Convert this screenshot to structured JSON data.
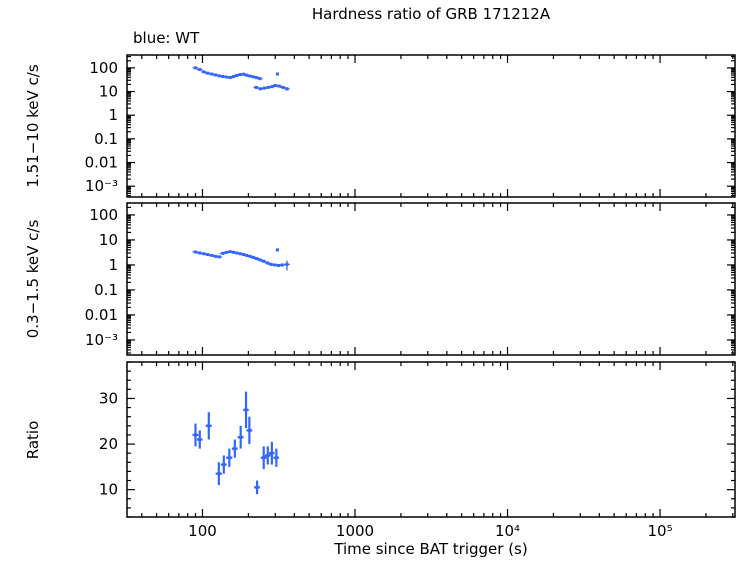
{
  "chart_data": {
    "type": "scatter",
    "title": "Hardness ratio of GRB 171212A",
    "legend": "blue: WT",
    "xlabel": "Time since BAT trigger (s)",
    "x_scale": "log",
    "x_range": [
      32,
      310000
    ],
    "x_ticks": [
      {
        "v": 100,
        "label": "100"
      },
      {
        "v": 1000,
        "label": "1000"
      },
      {
        "v": 10000,
        "label": "10⁴"
      },
      {
        "v": 100000,
        "label": "10⁵"
      }
    ],
    "series_color": "#3366ff",
    "axis_color": "#000000",
    "panels": [
      {
        "name": "hard-band",
        "ylabel": "1.51−10 keV c/s",
        "y_scale": "log",
        "y_range": [
          0.00035,
          350
        ],
        "y_ticks": [
          {
            "v": 100,
            "label": "100"
          },
          {
            "v": 10,
            "label": "10"
          },
          {
            "v": 1,
            "label": "1"
          },
          {
            "v": 0.1,
            "label": "0.1"
          },
          {
            "v": 0.01,
            "label": "0.01"
          },
          {
            "v": 0.001,
            "label": "10⁻³"
          }
        ],
        "points": [
          [
            90,
            100,
            8,
            4
          ],
          [
            96,
            85,
            7,
            4
          ],
          [
            102,
            68,
            6,
            4
          ],
          [
            108,
            60,
            5,
            4
          ],
          [
            115,
            55,
            5,
            5
          ],
          [
            122,
            50,
            4,
            5
          ],
          [
            129,
            46,
            4,
            5
          ],
          [
            136,
            43,
            4,
            6
          ],
          [
            144,
            41,
            3,
            6
          ],
          [
            152,
            39,
            3,
            6
          ],
          [
            160,
            43,
            3,
            7
          ],
          [
            168,
            48,
            4,
            7
          ],
          [
            177,
            52,
            4,
            7
          ],
          [
            186,
            54,
            4,
            8
          ],
          [
            195,
            49,
            4,
            8
          ],
          [
            205,
            45,
            4,
            9
          ],
          [
            215,
            42,
            3,
            9
          ],
          [
            226,
            39,
            3,
            9
          ],
          [
            238,
            35,
            3,
            10
          ],
          [
            225,
            15,
            2,
            9
          ],
          [
            240,
            13,
            1.5,
            10
          ],
          [
            255,
            14,
            1.5,
            11
          ],
          [
            270,
            15,
            1.5,
            11
          ],
          [
            285,
            16,
            1.5,
            12
          ],
          [
            300,
            18,
            2,
            12
          ],
          [
            318,
            17,
            2,
            13
          ],
          [
            337,
            15,
            2,
            14
          ],
          [
            358,
            13,
            2,
            15
          ],
          [
            310,
            55,
            6,
            6
          ]
        ]
      },
      {
        "name": "soft-band",
        "ylabel": "0.3−1.5 keV c/s",
        "y_scale": "log",
        "y_range": [
          0.00025,
          300
        ],
        "y_ticks": [
          {
            "v": 100,
            "label": "100"
          },
          {
            "v": 10,
            "label": "10"
          },
          {
            "v": 1,
            "label": "1"
          },
          {
            "v": 0.1,
            "label": "0.1"
          },
          {
            "v": 0.01,
            "label": "0.01"
          },
          {
            "v": 0.001,
            "label": "10⁻³"
          }
        ],
        "points": [
          [
            90,
            3.3,
            0.3,
            4
          ],
          [
            96,
            3.0,
            0.3,
            4
          ],
          [
            102,
            2.8,
            0.25,
            4
          ],
          [
            108,
            2.6,
            0.25,
            4
          ],
          [
            115,
            2.4,
            0.2,
            5
          ],
          [
            122,
            2.2,
            0.2,
            5
          ],
          [
            129,
            2.1,
            0.2,
            5
          ],
          [
            136,
            2.9,
            0.25,
            6
          ],
          [
            144,
            3.2,
            0.25,
            6
          ],
          [
            152,
            3.4,
            0.3,
            6
          ],
          [
            160,
            3.2,
            0.25,
            7
          ],
          [
            168,
            3.0,
            0.25,
            7
          ],
          [
            177,
            2.8,
            0.25,
            7
          ],
          [
            186,
            2.6,
            0.2,
            8
          ],
          [
            195,
            2.4,
            0.2,
            8
          ],
          [
            205,
            2.2,
            0.2,
            9
          ],
          [
            215,
            2.0,
            0.2,
            9
          ],
          [
            226,
            1.8,
            0.18,
            9
          ],
          [
            238,
            1.6,
            0.16,
            10
          ],
          [
            252,
            1.4,
            0.15,
            10
          ],
          [
            267,
            1.2,
            0.13,
            11
          ],
          [
            282,
            1.05,
            0.12,
            12
          ],
          [
            298,
            1.0,
            0.12,
            12
          ],
          [
            315,
            0.95,
            0.12,
            13
          ],
          [
            333,
            1.0,
            0.15,
            14
          ],
          [
            310,
            4.0,
            0.5,
            6
          ],
          [
            358,
            1.05,
            0.45,
            15
          ]
        ]
      },
      {
        "name": "ratio",
        "ylabel": "Ratio",
        "y_scale": "linear",
        "y_range": [
          4,
          38
        ],
        "y_ticks": [
          {
            "v": 10,
            "label": "10"
          },
          {
            "v": 20,
            "label": "20"
          },
          {
            "v": 30,
            "label": "30"
          }
        ],
        "points": [
          [
            90,
            22,
            2.5,
            4
          ],
          [
            96,
            21,
            2,
            4
          ],
          [
            110,
            24,
            3,
            5
          ],
          [
            128,
            13.5,
            2.5,
            6
          ],
          [
            138,
            15.5,
            2,
            6
          ],
          [
            150,
            17,
            2,
            7
          ],
          [
            163,
            19,
            2,
            7
          ],
          [
            178,
            21.5,
            2.5,
            8
          ],
          [
            193,
            27.5,
            4,
            8
          ],
          [
            203,
            23,
            3,
            9
          ],
          [
            228,
            10.5,
            1.5,
            10
          ],
          [
            252,
            17,
            2.5,
            11
          ],
          [
            268,
            17.5,
            2,
            11
          ],
          [
            285,
            18,
            2.5,
            12
          ],
          [
            305,
            17,
            2,
            13
          ]
        ]
      }
    ]
  }
}
